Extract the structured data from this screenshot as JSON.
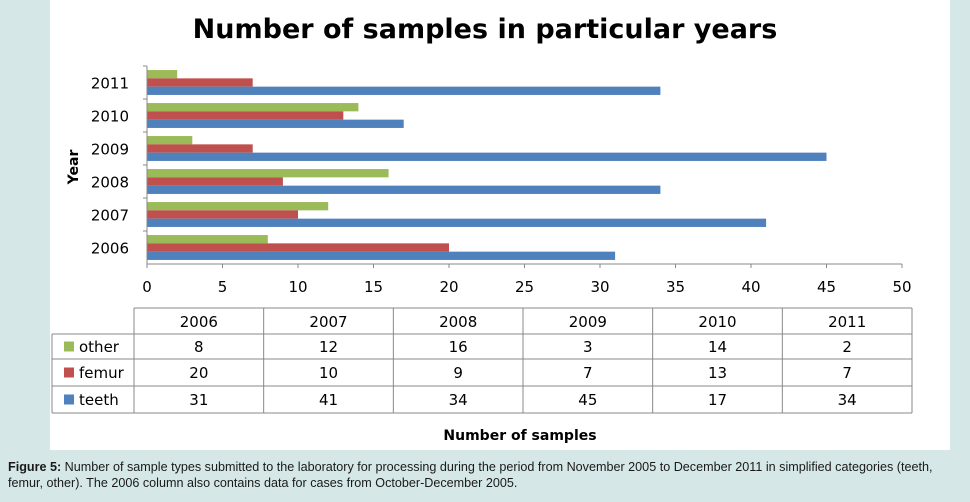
{
  "chart_data": {
    "type": "bar",
    "orientation": "horizontal",
    "title": "Number of samples in particular years",
    "xlabel": "Number of samples",
    "ylabel": "Year",
    "xlim": [
      0,
      50
    ],
    "x_ticks": [
      0,
      5,
      10,
      15,
      20,
      25,
      30,
      35,
      40,
      45,
      50
    ],
    "categories": [
      "2006",
      "2007",
      "2008",
      "2009",
      "2010",
      "2011"
    ],
    "series": [
      {
        "name": "other",
        "color": "#9bbb59",
        "values": [
          8,
          12,
          16,
          3,
          14,
          2
        ]
      },
      {
        "name": "femur",
        "color": "#c0504d",
        "values": [
          20,
          10,
          9,
          7,
          13,
          7
        ]
      },
      {
        "name": "teeth",
        "color": "#4f81bd",
        "values": [
          31,
          41,
          34,
          45,
          17,
          34
        ]
      }
    ],
    "grid": false,
    "legend": "data-table",
    "data_table": true
  },
  "caption": {
    "label": "Figure 5:",
    "text": " Number of sample types submitted to the laboratory for processing during the period from November 2005 to December 2011 in simplified categories (teeth, femur, other). The 2006 column also contains data for cases from October-December 2005."
  }
}
